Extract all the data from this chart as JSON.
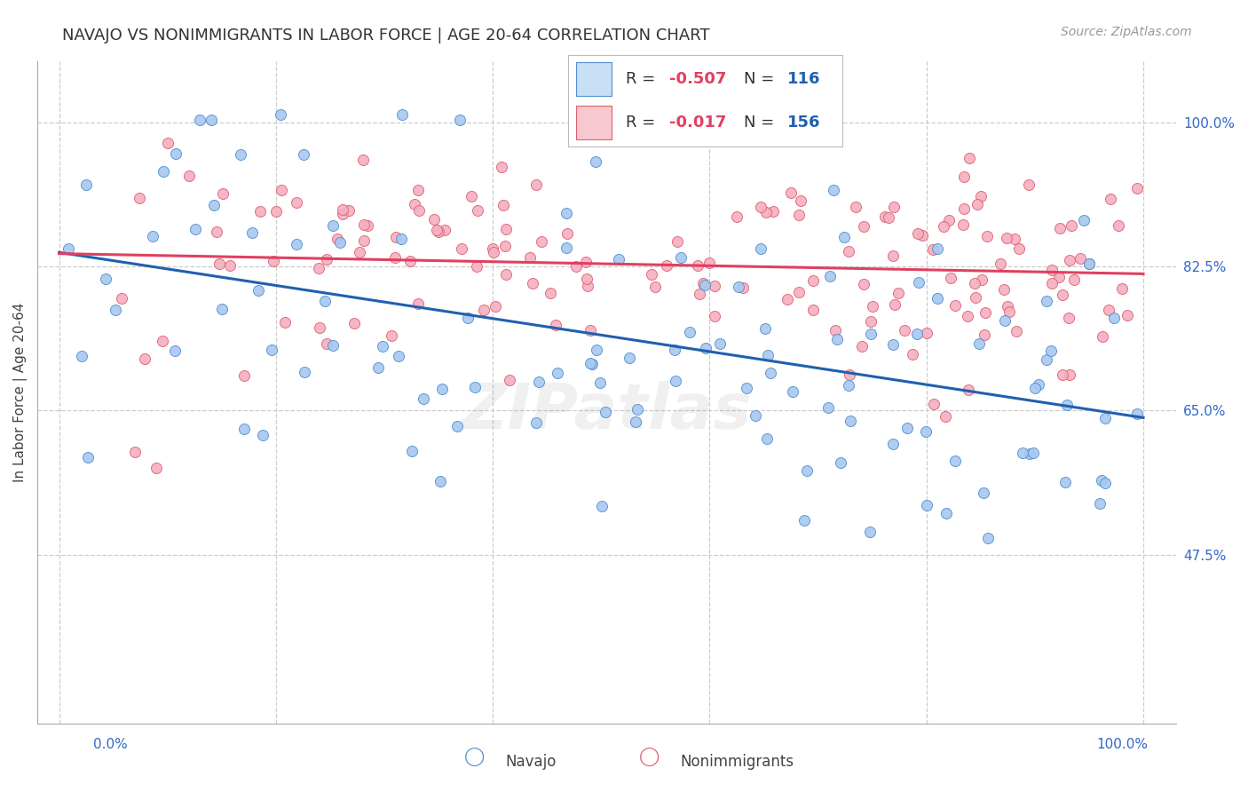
{
  "title": "NAVAJO VS NONIMMIGRANTS IN LABOR FORCE | AGE 20-64 CORRELATION CHART",
  "source_text": "Source: ZipAtlas.com",
  "ylabel": "In Labor Force | Age 20-64",
  "navajo_R": -0.507,
  "navajo_N": 116,
  "nonimm_R": -0.017,
  "nonimm_N": 156,
  "navajo_marker_color": "#a8c8f0",
  "navajo_edge_color": "#5090d0",
  "navajo_line_color": "#2060b0",
  "nonimm_marker_color": "#f4b0c0",
  "nonimm_edge_color": "#e06070",
  "nonimm_line_color": "#e04060",
  "legend_navajo_fill": "#c8dff5",
  "legend_nonimm_fill": "#f8c8d0",
  "R_color": "#e04060",
  "N_color": "#2060b0",
  "grid_color": "#cccccc",
  "bg_color": "#ffffff",
  "marker_size": 75,
  "title_fontsize": 13,
  "ylabel_fontsize": 11,
  "tick_fontsize": 11,
  "legend_fontsize": 13,
  "source_fontsize": 10,
  "watermark_text": "ZIPatlas",
  "watermark_alpha": 0.12,
  "ytick_values": [
    0.475,
    0.65,
    0.825,
    1.0
  ],
  "ytick_labels": [
    "47.5%",
    "65.0%",
    "82.5%",
    "100.0%"
  ],
  "xlim": [
    -0.02,
    1.03
  ],
  "ylim": [
    0.27,
    1.075
  ]
}
